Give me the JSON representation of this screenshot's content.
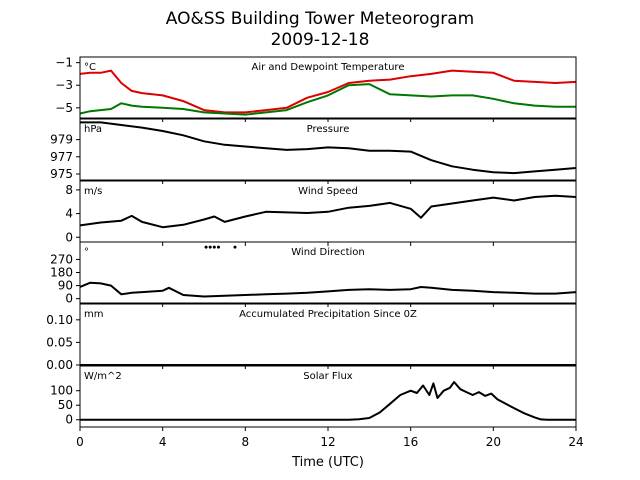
{
  "title": "AO&SS Building Tower Meteorogram",
  "subtitle": "2009-12-18",
  "chart_data": {
    "type": "line",
    "xlabel": "Time (UTC)",
    "xlim": [
      0,
      24
    ],
    "xticks": [
      "0",
      "4",
      "8",
      "12",
      "16",
      "20",
      "24"
    ],
    "panels": [
      {
        "title": "Air and Dewpoint Temperature",
        "unit": "°C",
        "ylim": [
          -5.9,
          -0.5
        ],
        "yticks": [
          {
            "v": -1,
            "label": "−1"
          },
          {
            "v": -3,
            "label": "−3"
          },
          {
            "v": -5,
            "label": "−5"
          }
        ],
        "series": [
          {
            "color": "#dd0000",
            "x": [
              0,
              0.5,
              1,
              1.5,
              2,
              2.5,
              3,
              4,
              5,
              6,
              7,
              8,
              9,
              10,
              11,
              12,
              13,
              14,
              15,
              16,
              17,
              18,
              19,
              20,
              21,
              22,
              23,
              24
            ],
            "y": [
              -2.0,
              -1.9,
              -1.9,
              -1.7,
              -2.8,
              -3.5,
              -3.7,
              -3.9,
              -4.4,
              -5.2,
              -5.4,
              -5.4,
              -5.2,
              -5.0,
              -4.1,
              -3.6,
              -2.8,
              -2.6,
              -2.5,
              -2.2,
              -2.0,
              -1.7,
              -1.8,
              -1.9,
              -2.6,
              -2.7,
              -2.8,
              -2.7
            ]
          },
          {
            "color": "#007700",
            "x": [
              0,
              0.5,
              1,
              1.5,
              2,
              2.5,
              3,
              4,
              5,
              6,
              7,
              8,
              9,
              10,
              11,
              12,
              13,
              14,
              15,
              16,
              17,
              18,
              19,
              20,
              21,
              22,
              23,
              24
            ],
            "y": [
              -5.5,
              -5.3,
              -5.2,
              -5.1,
              -4.6,
              -4.8,
              -4.9,
              -5.0,
              -5.1,
              -5.4,
              -5.5,
              -5.6,
              -5.4,
              -5.2,
              -4.5,
              -3.9,
              -3.0,
              -2.9,
              -3.8,
              -3.9,
              -4.0,
              -3.9,
              -3.9,
              -4.2,
              -4.6,
              -4.8,
              -4.9,
              -4.9
            ]
          }
        ]
      },
      {
        "title": "Pressure",
        "unit": "hPa",
        "ylim": [
          974.3,
          981.4
        ],
        "yticks": [
          {
            "v": 979,
            "label": "979"
          },
          {
            "v": 977,
            "label": "977"
          },
          {
            "v": 975,
            "label": "975"
          }
        ],
        "series": [
          {
            "color": "#000000",
            "x": [
              0,
              1,
              2,
              3,
              4,
              5,
              6,
              7,
              8,
              9,
              10,
              11,
              12,
              13,
              14,
              15,
              16,
              17,
              18,
              19,
              20,
              21,
              22,
              23,
              24
            ],
            "y": [
              981.0,
              981.0,
              980.7,
              980.4,
              980.0,
              979.5,
              978.8,
              978.4,
              978.2,
              978.0,
              977.8,
              977.9,
              978.1,
              978.0,
              977.7,
              977.7,
              977.6,
              976.6,
              975.9,
              975.5,
              975.2,
              975.1,
              975.3,
              975.5,
              975.7
            ]
          }
        ]
      },
      {
        "title": "Wind Speed",
        "unit": "m/s",
        "ylim": [
          -0.8,
          9.5
        ],
        "yticks": [
          {
            "v": 8,
            "label": "8"
          },
          {
            "v": 4,
            "label": "4"
          },
          {
            "v": 0,
            "label": "0"
          }
        ],
        "series": [
          {
            "color": "#000000",
            "x": [
              0,
              1,
              2,
              2.5,
              3,
              4,
              5,
              6,
              6.5,
              7,
              8,
              9,
              10,
              11,
              12,
              13,
              14,
              15,
              16,
              16.5,
              17,
              18,
              19,
              20,
              21,
              22,
              23,
              24
            ],
            "y": [
              2.0,
              2.5,
              2.8,
              3.6,
              2.6,
              1.7,
              2.1,
              3.0,
              3.5,
              2.6,
              3.5,
              4.3,
              4.2,
              4.1,
              4.3,
              5.0,
              5.3,
              5.8,
              4.8,
              3.3,
              5.2,
              5.7,
              6.2,
              6.7,
              6.2,
              6.8,
              7.0,
              6.8
            ]
          }
        ]
      },
      {
        "title": "Wind Direction",
        "unit": "°",
        "ylim": [
          -30,
          390
        ],
        "yticks": [
          {
            "v": 270,
            "label": "270"
          },
          {
            "v": 180,
            "label": "180"
          },
          {
            "v": 90,
            "label": "90"
          },
          {
            "v": 0,
            "label": "0"
          }
        ],
        "series": [
          {
            "color": "#000000",
            "x": [
              0,
              0.5,
              1,
              1.5,
              2,
              2.5,
              3,
              4,
              4.3,
              5,
              6,
              7,
              8,
              9,
              10,
              11,
              12,
              13,
              14,
              15,
              16,
              16.5,
              17,
              18,
              19,
              20,
              21,
              22,
              23,
              24
            ],
            "y": [
              80,
              110,
              105,
              90,
              30,
              40,
              45,
              55,
              75,
              25,
              15,
              20,
              25,
              30,
              35,
              40,
              50,
              60,
              65,
              60,
              65,
              80,
              75,
              60,
              55,
              45,
              40,
              35,
              35,
              45
            ]
          }
        ],
        "outliers": {
          "x": [
            6.1,
            6.3,
            6.5,
            6.7,
            7.5
          ],
          "y": [
            355,
            355,
            355,
            355,
            355
          ]
        }
      },
      {
        "title": "Accumulated Precipitation Since 0Z",
        "unit": "mm",
        "ylim": [
          0,
          0.135
        ],
        "yticks": [
          {
            "v": 0.1,
            "label": "0.10"
          },
          {
            "v": 0.05,
            "label": "0.05"
          },
          {
            "v": 0.0,
            "label": "0.00"
          }
        ],
        "series": [
          {
            "color": "#000000",
            "x": [
              0,
              24
            ],
            "y": [
              0.0,
              0.0
            ]
          }
        ]
      },
      {
        "title": "Solar Flux",
        "unit": "W/m^2",
        "ylim": [
          -25,
          185
        ],
        "yticks": [
          {
            "v": 100,
            "label": "100"
          },
          {
            "v": 50,
            "label": "50"
          },
          {
            "v": 0,
            "label": "0"
          }
        ],
        "series": [
          {
            "color": "#000000",
            "x": [
              0,
              13,
              13.5,
              14,
              14.5,
              15,
              15.5,
              16,
              16.3,
              16.6,
              16.9,
              17.1,
              17.3,
              17.6,
              17.9,
              18.1,
              18.4,
              18.7,
              19,
              19.3,
              19.6,
              19.9,
              20.2,
              20.6,
              21,
              21.5,
              22,
              22.3,
              22.6,
              24
            ],
            "y": [
              0,
              0,
              2,
              6,
              25,
              55,
              85,
              100,
              92,
              118,
              85,
              125,
              75,
              100,
              110,
              130,
              105,
              95,
              85,
              95,
              82,
              90,
              70,
              55,
              40,
              22,
              8,
              1,
              0,
              0
            ]
          }
        ]
      }
    ]
  }
}
